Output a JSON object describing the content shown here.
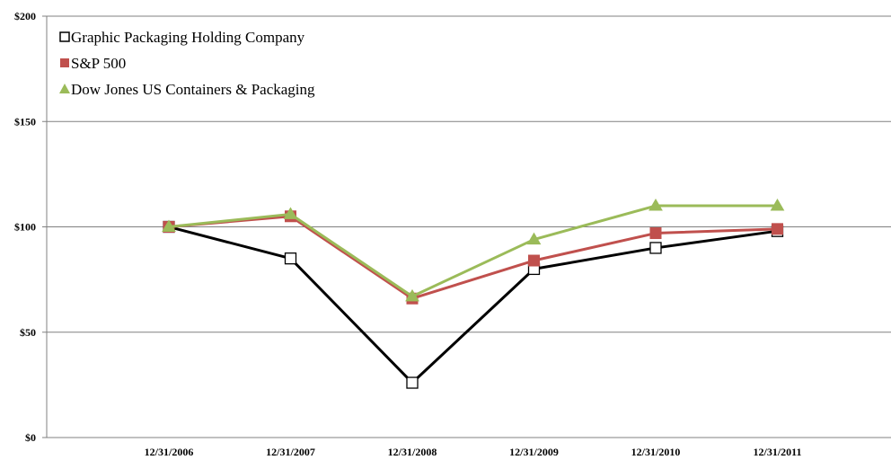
{
  "chart_data": {
    "type": "line",
    "categories": [
      "12/31/2006",
      "12/31/2007",
      "12/31/2008",
      "12/31/2009",
      "12/31/2010",
      "12/31/2011"
    ],
    "ylim": [
      0,
      200
    ],
    "yticks": [
      0,
      50,
      100,
      150,
      200
    ],
    "ytick_labels": [
      "$0",
      "$50",
      "$100",
      "$150",
      "$200"
    ],
    "grid": true,
    "legend_position": "top-left",
    "series": [
      {
        "name": "Graphic Packaging Holding Company",
        "values": [
          100,
          85,
          26,
          80,
          90,
          98
        ],
        "color": "#000000",
        "marker": "open-square"
      },
      {
        "name": "S&P 500",
        "values": [
          100,
          105,
          66,
          84,
          97,
          99
        ],
        "color": "#C0504D",
        "marker": "filled-square"
      },
      {
        "name": "Dow Jones US Containers & Packaging",
        "values": [
          100,
          106,
          67,
          94,
          110,
          110
        ],
        "color": "#9BBB59",
        "marker": "triangle"
      }
    ]
  }
}
